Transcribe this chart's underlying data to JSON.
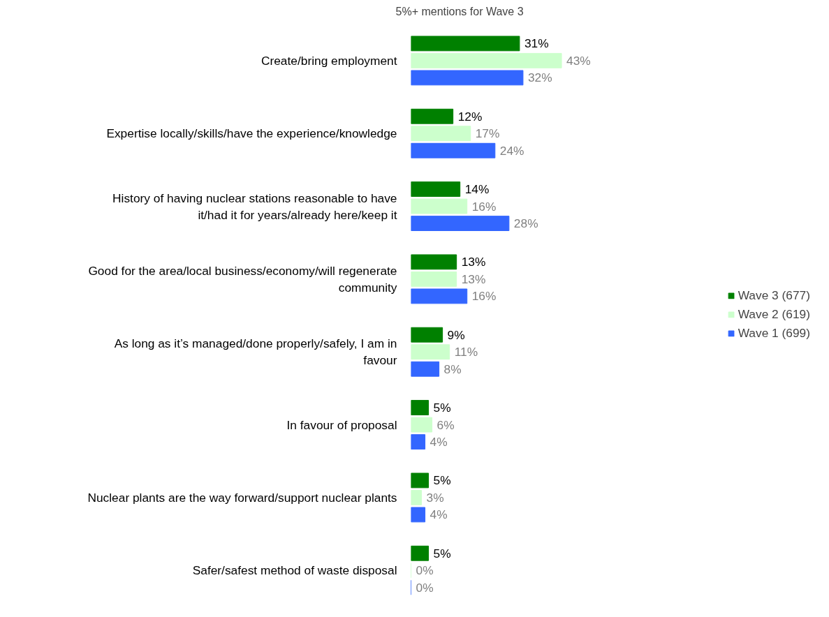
{
  "chart_data": {
    "type": "bar",
    "orientation": "horizontal",
    "title": "5%+ mentions for Wave 3",
    "categories": [
      "Create/bring employment",
      "Expertise locally/skills/have the experience/knowledge",
      "History of having nuclear stations reasonable to have it/had it for years/already here/keep it",
      "Good for the area/local business/economy/will regenerate community",
      "As long as it’s managed/done properly/safely, I am in favour",
      "In favour of proposal",
      "Nuclear plants are the way forward/support nuclear plants",
      "Safer/safest method of waste disposal"
    ],
    "series": [
      {
        "name": "Wave 3 (677)",
        "color": "#008000",
        "values": [
          31,
          12,
          14,
          13,
          9,
          5,
          5,
          5
        ],
        "value_labels": [
          "31%",
          "12%",
          "14%",
          "13%",
          "9%",
          "5%",
          "5%",
          "5%"
        ]
      },
      {
        "name": "Wave 2 (619)",
        "color": "#ccffcc",
        "values": [
          43,
          17,
          16,
          13,
          11,
          6,
          3,
          0
        ],
        "value_labels": [
          "43%",
          "17%",
          "16%",
          "13%",
          "11%",
          "6%",
          "3%",
          "0%"
        ]
      },
      {
        "name": "Wave 1 (699)",
        "color": "#3366ff",
        "values": [
          32,
          24,
          28,
          16,
          8,
          4,
          4,
          0
        ],
        "value_labels": [
          "32%",
          "24%",
          "28%",
          "16%",
          "8%",
          "4%",
          "4%",
          "0%"
        ]
      }
    ],
    "legend": "right",
    "grid": false
  }
}
